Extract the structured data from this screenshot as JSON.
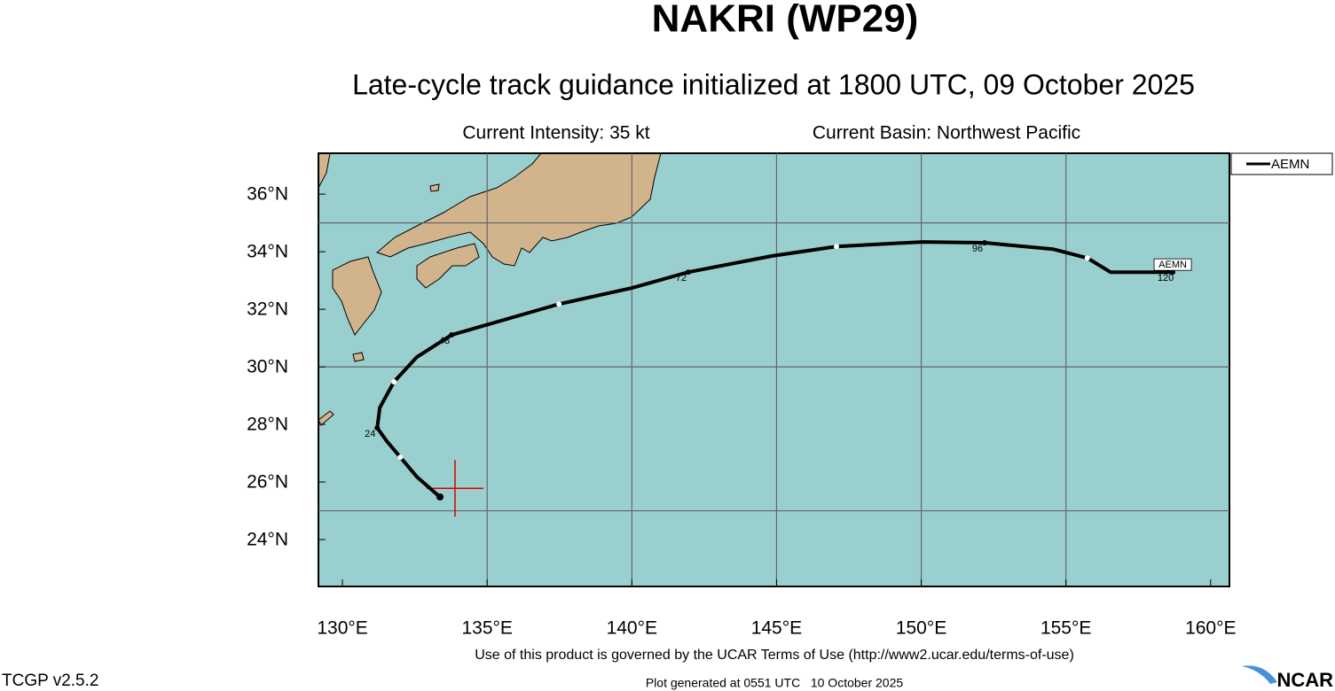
{
  "title": "NAKRI (WP29)",
  "subtitle": "Late-cycle track guidance initialized at 1800 UTC, 09 October 2025",
  "intensity": "Current Intensity: 35 kt",
  "basin": "Current Basin: Northwest Pacific",
  "map": {
    "lon_range": [
      129.17,
      160.65
    ],
    "lat_range": [
      22.37,
      37.42
    ],
    "lon_ticks": [
      {
        "value": 130,
        "label": "130°E"
      },
      {
        "value": 135,
        "label": "135°E"
      },
      {
        "value": 140,
        "label": "140°E"
      },
      {
        "value": 145,
        "label": "145°E"
      },
      {
        "value": 150,
        "label": "150°E"
      },
      {
        "value": 155,
        "label": "155°E"
      },
      {
        "value": 160,
        "label": "160°E"
      }
    ],
    "lat_ticks": [
      {
        "value": 24,
        "label": "24°N"
      },
      {
        "value": 26,
        "label": "26°N"
      },
      {
        "value": 28,
        "label": "28°N"
      },
      {
        "value": 30,
        "label": "30°N"
      },
      {
        "value": 32,
        "label": "32°N"
      },
      {
        "value": 34,
        "label": "34°N"
      },
      {
        "value": 36,
        "label": "36°N"
      }
    ],
    "grid": {
      "lon": [
        135,
        140,
        145,
        150,
        155
      ],
      "lat": [
        25,
        30,
        35
      ]
    },
    "current_position": {
      "lon": 133.89,
      "lat": 25.78
    },
    "track": {
      "name": "AEMN",
      "color": "#000000",
      "lon": [
        133.37,
        132.57,
        132.0,
        131.53,
        131.2,
        131.29,
        131.78,
        132.57,
        133.77,
        137.48,
        140.0,
        141.95,
        144.83,
        147.07,
        150.04,
        152.19,
        154.55,
        155.74,
        156.54,
        158.69
      ],
      "lat": [
        25.48,
        26.18,
        26.86,
        27.42,
        27.88,
        28.58,
        29.48,
        30.34,
        31.11,
        32.18,
        32.74,
        33.29,
        33.85,
        34.18,
        34.34,
        34.31,
        34.09,
        33.78,
        33.29,
        33.29
      ],
      "start": {
        "lon": 133.37,
        "lat": 25.48
      },
      "waypoints": [
        {
          "lon": 132.0,
          "lat": 26.86
        },
        {
          "lon": 131.78,
          "lat": 29.48
        },
        {
          "lon": 137.48,
          "lat": 32.18
        },
        {
          "lon": 147.07,
          "lat": 34.18
        },
        {
          "lon": 155.74,
          "lat": 33.78
        }
      ],
      "hour_labels": [
        {
          "label": "24",
          "lon": 131.2,
          "lat": 27.88
        },
        {
          "label": "48",
          "lon": 133.77,
          "lat": 31.11
        },
        {
          "label": "72",
          "lon": 141.95,
          "lat": 33.29
        },
        {
          "label": "96",
          "lon": 152.19,
          "lat": 34.31
        },
        {
          "label": "120",
          "lon": 158.69,
          "lat": 33.29
        }
      ]
    }
  },
  "legend": [
    "AEMN"
  ],
  "footer": {
    "terms": "Use of this product is governed by the UCAR Terms of Use (http://www2.ucar.edu/terms-of-use)",
    "version": "TCGP v2.5.2",
    "generated": "Plot generated at 0551 UTC   10 October 2025",
    "logo": "NCAR"
  }
}
